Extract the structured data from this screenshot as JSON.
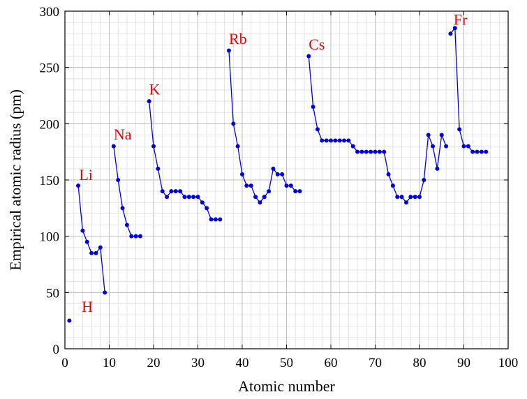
{
  "chart_data": {
    "type": "line",
    "title": "",
    "xlabel": "Atomic number",
    "ylabel": "Empirical atomic radius (pm)",
    "xlim": [
      0,
      100
    ],
    "ylim": [
      0,
      300
    ],
    "x_ticks": [
      0,
      10,
      20,
      30,
      40,
      50,
      60,
      70,
      80,
      90,
      100
    ],
    "y_ticks": [
      0,
      50,
      100,
      150,
      200,
      250,
      300
    ],
    "x_minor_step": 2,
    "y_minor_step": 10,
    "grid": true,
    "line_color": "#0000dd",
    "annotation_color": "#ee0000",
    "segments": [
      {
        "points": [
          [
            1,
            25
          ]
        ]
      },
      {
        "points": [
          [
            3,
            145
          ],
          [
            4,
            105
          ],
          [
            5,
            95
          ],
          [
            6,
            85
          ],
          [
            7,
            85
          ],
          [
            8,
            90
          ],
          [
            9,
            50
          ]
        ]
      },
      {
        "points": [
          [
            11,
            180
          ],
          [
            12,
            150
          ],
          [
            13,
            125
          ],
          [
            14,
            110
          ],
          [
            15,
            100
          ],
          [
            16,
            100
          ],
          [
            17,
            100
          ]
        ]
      },
      {
        "points": [
          [
            19,
            220
          ],
          [
            20,
            180
          ],
          [
            21,
            160
          ],
          [
            22,
            140
          ],
          [
            23,
            135
          ],
          [
            24,
            140
          ],
          [
            25,
            140
          ],
          [
            26,
            140
          ],
          [
            27,
            135
          ],
          [
            28,
            135
          ],
          [
            29,
            135
          ],
          [
            30,
            135
          ],
          [
            31,
            130
          ],
          [
            32,
            125
          ],
          [
            33,
            115
          ],
          [
            34,
            115
          ],
          [
            35,
            115
          ]
        ]
      },
      {
        "points": [
          [
            37,
            265
          ],
          [
            38,
            200
          ],
          [
            39,
            180
          ],
          [
            40,
            155
          ],
          [
            41,
            145
          ],
          [
            42,
            145
          ],
          [
            43,
            135
          ],
          [
            44,
            130
          ],
          [
            45,
            135
          ],
          [
            46,
            140
          ],
          [
            47,
            160
          ],
          [
            48,
            155
          ],
          [
            49,
            155
          ],
          [
            50,
            145
          ],
          [
            51,
            145
          ],
          [
            52,
            140
          ],
          [
            53,
            140
          ]
        ]
      },
      {
        "points": [
          [
            55,
            260
          ],
          [
            56,
            215
          ],
          [
            57,
            195
          ],
          [
            58,
            185
          ],
          [
            59,
            185
          ],
          [
            60,
            185
          ],
          [
            61,
            185
          ],
          [
            62,
            185
          ],
          [
            63,
            185
          ],
          [
            64,
            185
          ],
          [
            65,
            180
          ],
          [
            66,
            175
          ],
          [
            67,
            175
          ],
          [
            68,
            175
          ],
          [
            69,
            175
          ],
          [
            70,
            175
          ],
          [
            71,
            175
          ],
          [
            72,
            175
          ],
          [
            73,
            155
          ],
          [
            74,
            145
          ],
          [
            75,
            135
          ],
          [
            76,
            135
          ],
          [
            77,
            130
          ],
          [
            78,
            135
          ],
          [
            79,
            135
          ],
          [
            80,
            135
          ],
          [
            81,
            150
          ],
          [
            82,
            190
          ],
          [
            83,
            180
          ],
          [
            84,
            160
          ],
          [
            85,
            190
          ],
          [
            86,
            180
          ]
        ]
      },
      {
        "points": [
          [
            87,
            280
          ],
          [
            88,
            285
          ],
          [
            89,
            195
          ],
          [
            90,
            180
          ],
          [
            91,
            180
          ],
          [
            92,
            175
          ],
          [
            93,
            175
          ],
          [
            94,
            175
          ],
          [
            95,
            175
          ]
        ]
      }
    ],
    "annotations": [
      {
        "text": "H",
        "x": 3.8,
        "y": 33
      },
      {
        "text": "Li",
        "x": 3.2,
        "y": 150
      },
      {
        "text": "Na",
        "x": 11.0,
        "y": 186
      },
      {
        "text": "K",
        "x": 19.0,
        "y": 226
      },
      {
        "text": "Rb",
        "x": 37.0,
        "y": 271
      },
      {
        "text": "Cs",
        "x": 55.0,
        "y": 266
      },
      {
        "text": "Fr",
        "x": 87.7,
        "y": 288
      }
    ]
  }
}
